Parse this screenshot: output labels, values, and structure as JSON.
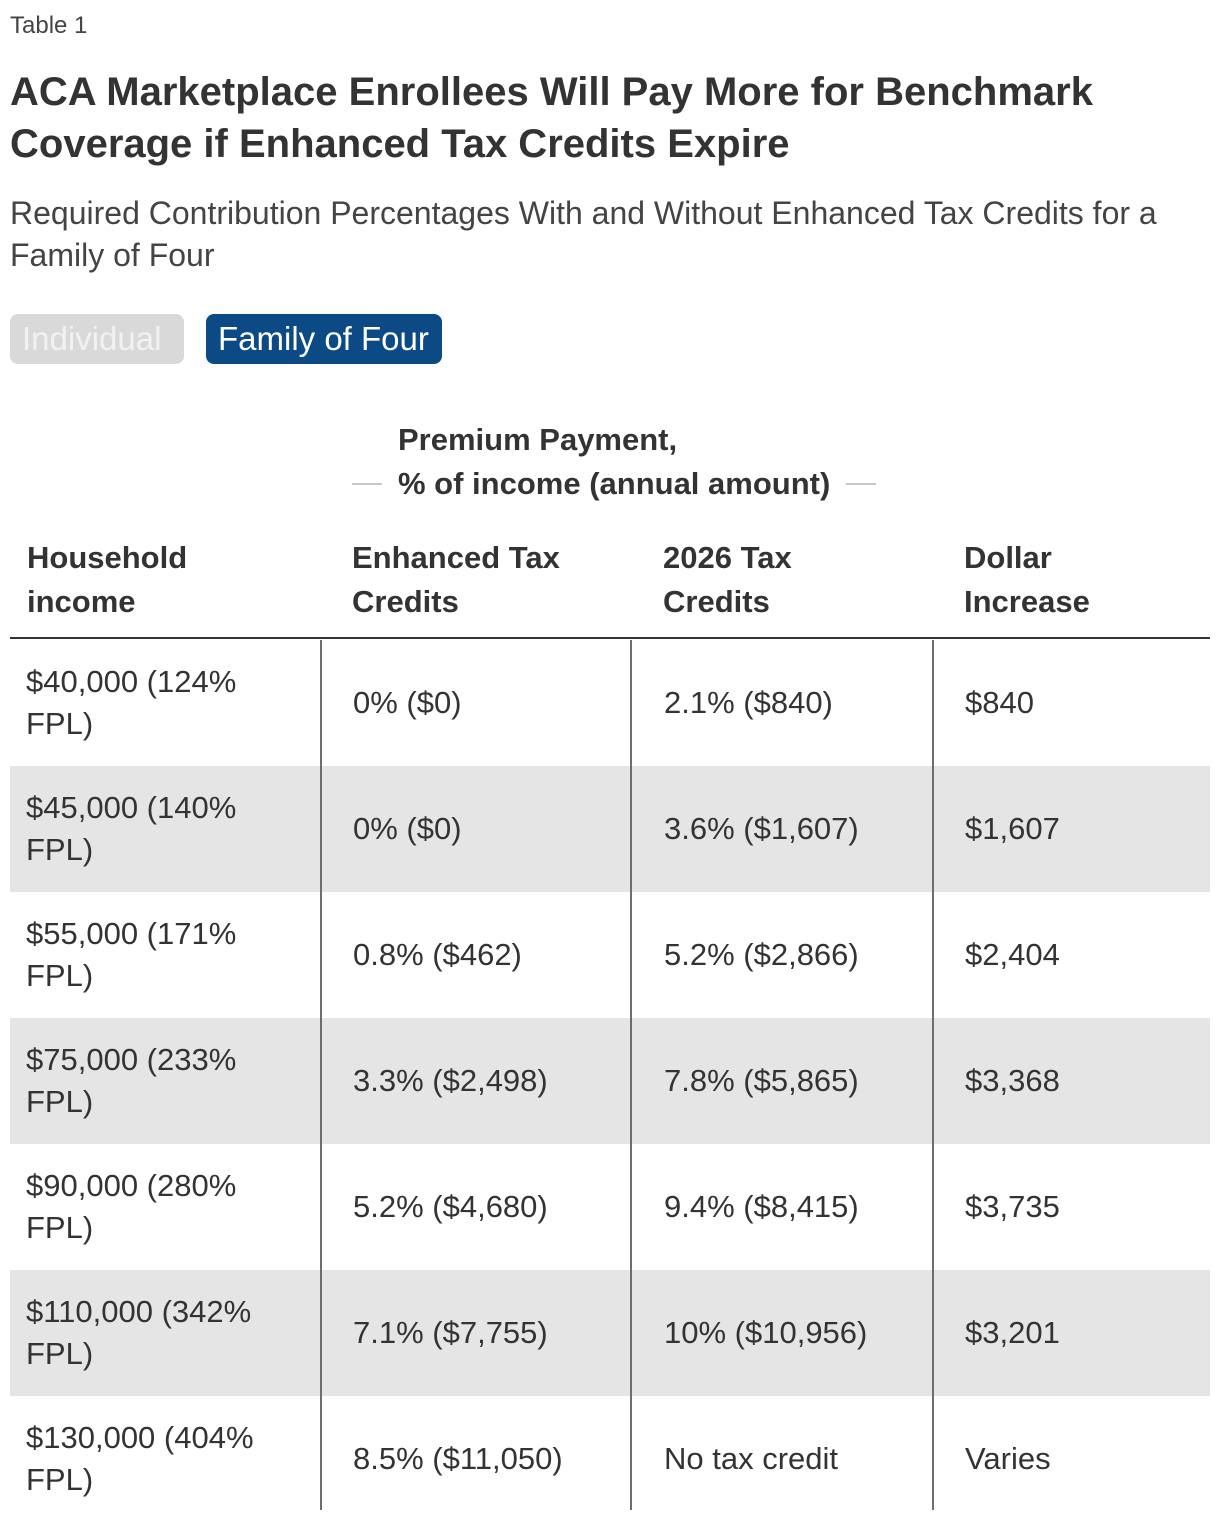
{
  "eyebrow": "Table 1",
  "title": "ACA Marketplace Enrollees Will Pay More for Benchmark Coverage if Enhanced Tax Credits Expire",
  "subtitle": "Required Contribution Percentages With and Without Enhanced Tax Credits for a Family of Four",
  "toggles": {
    "individual": "Individual",
    "family": "Family of Four",
    "selected": "Family of Four"
  },
  "group_header": {
    "line1": "Premium Payment,",
    "line2": "% of income (annual amount)"
  },
  "columns": [
    "Household income",
    "Enhanced Tax Credits",
    "2026 Tax Credits",
    "Dollar Increase"
  ],
  "rows": [
    [
      "$40,000 (124% FPL)",
      "0% ($0)",
      "2.1% ($840)",
      "$840"
    ],
    [
      "$45,000 (140% FPL)",
      "0% ($0)",
      "3.6% ($1,607)",
      "$1,607"
    ],
    [
      "$55,000 (171% FPL)",
      "0.8% ($462)",
      "5.2% ($2,866)",
      "$2,404"
    ],
    [
      "$75,000 (233% FPL)",
      "3.3% ($2,498)",
      "7.8% ($5,865)",
      "$3,368"
    ],
    [
      "$90,000 (280% FPL)",
      "5.2% ($4,680)",
      "9.4% ($8,415)",
      "$3,735"
    ],
    [
      "$110,000 (342% FPL)",
      "7.1% ($7,755)",
      "10% ($10,956)",
      "$3,201"
    ],
    [
      "$130,000 (404% FPL)",
      "8.5% ($11,050)",
      "No tax credit",
      "Varies"
    ]
  ],
  "colors": {
    "accent": "#0c4a86",
    "row_shade": "#e5e5e5",
    "toggle_inactive": "#d9d9d9"
  }
}
